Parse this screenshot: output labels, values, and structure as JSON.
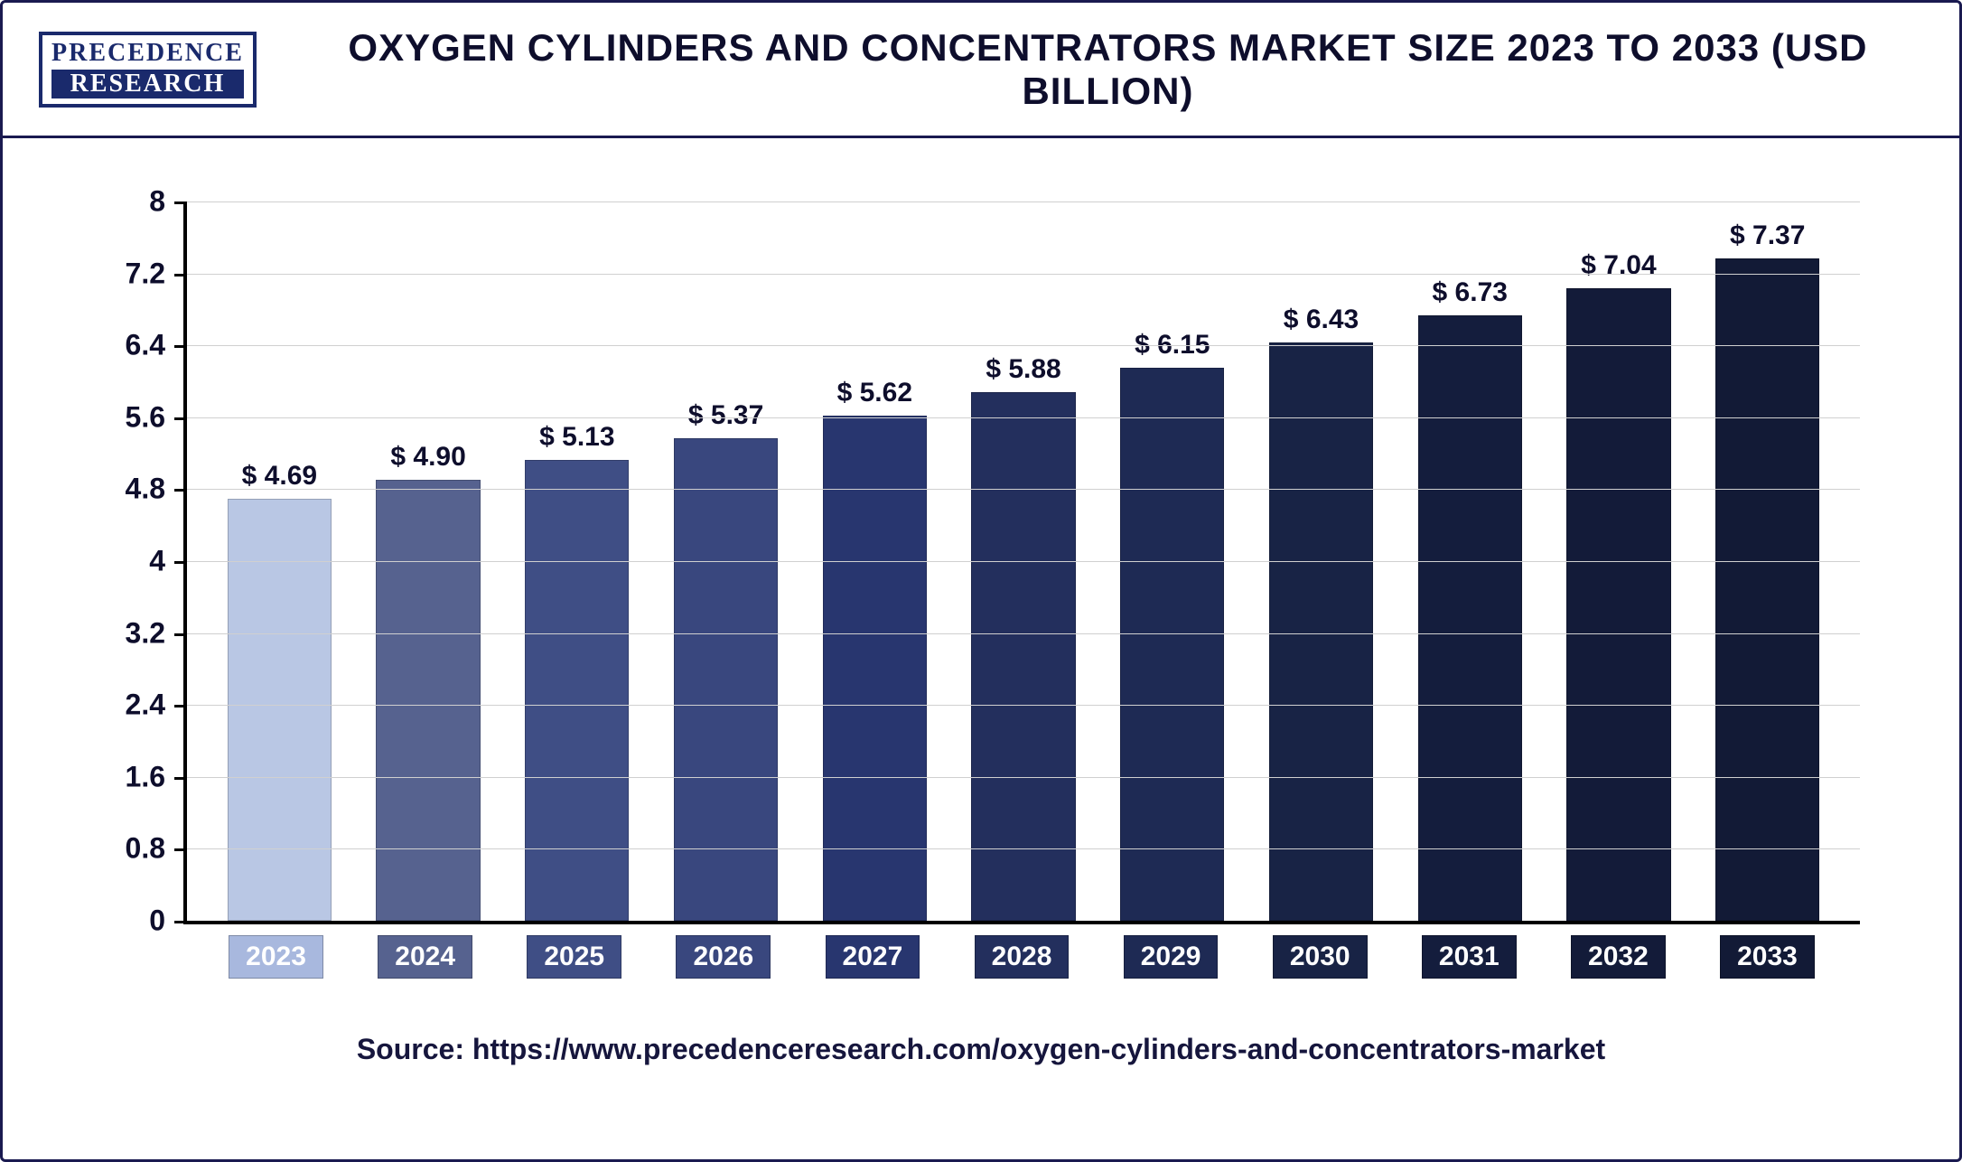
{
  "logo": {
    "top": "PRECEDENCE",
    "bottom": "RESEARCH"
  },
  "title": "OXYGEN CYLINDERS AND CONCENTRATORS MARKET SIZE 2023 TO 2033 (USD BILLION)",
  "source": "Source:  https://www.precedenceresearch.com/oxygen-cylinders-and-concentrators-market",
  "chart": {
    "type": "bar",
    "ylim": [
      0,
      8
    ],
    "ytick_step": 0.8,
    "yticks": [
      0,
      0.8,
      1.6,
      2.4,
      3.2,
      4,
      4.8,
      5.6,
      6.4,
      7.2,
      8
    ],
    "ytick_labels": [
      "0",
      "0.8",
      "1.6",
      "2.4",
      "3.2",
      "4",
      "4.8",
      "5.6",
      "6.4",
      "7.2",
      "8"
    ],
    "grid_color": "#d0d0d0",
    "axis_color": "#000000",
    "background_color": "#ffffff",
    "title_fontsize": 42,
    "label_fontsize": 32,
    "value_fontsize": 30,
    "bar_width": 0.7,
    "categories": [
      "2023",
      "2024",
      "2025",
      "2026",
      "2027",
      "2028",
      "2029",
      "2030",
      "2031",
      "2032",
      "2033"
    ],
    "values": [
      4.69,
      4.9,
      5.13,
      5.37,
      5.62,
      5.88,
      6.15,
      6.43,
      6.73,
      7.04,
      7.37
    ],
    "value_labels": [
      "$ 4.69",
      "$ 4.90",
      "$ 5.13",
      "$ 5.37",
      "$ 5.62",
      "$ 5.88",
      "$ 6.15",
      "$ 6.43",
      "$ 6.73",
      "$ 7.04",
      "$ 7.37"
    ],
    "bar_colors": [
      "#b9c7e4",
      "#56628f",
      "#3f4e85",
      "#39477e",
      "#28366f",
      "#232f5d",
      "#1e2a54",
      "#182345",
      "#141d3d",
      "#131b39",
      "#121a36"
    ],
    "xlabel_bg_colors": [
      "#a8b8de",
      "#56628f",
      "#3f4e85",
      "#39477e",
      "#28366f",
      "#232f5d",
      "#1e2a54",
      "#182345",
      "#141d3d",
      "#131b39",
      "#121a36"
    ]
  }
}
